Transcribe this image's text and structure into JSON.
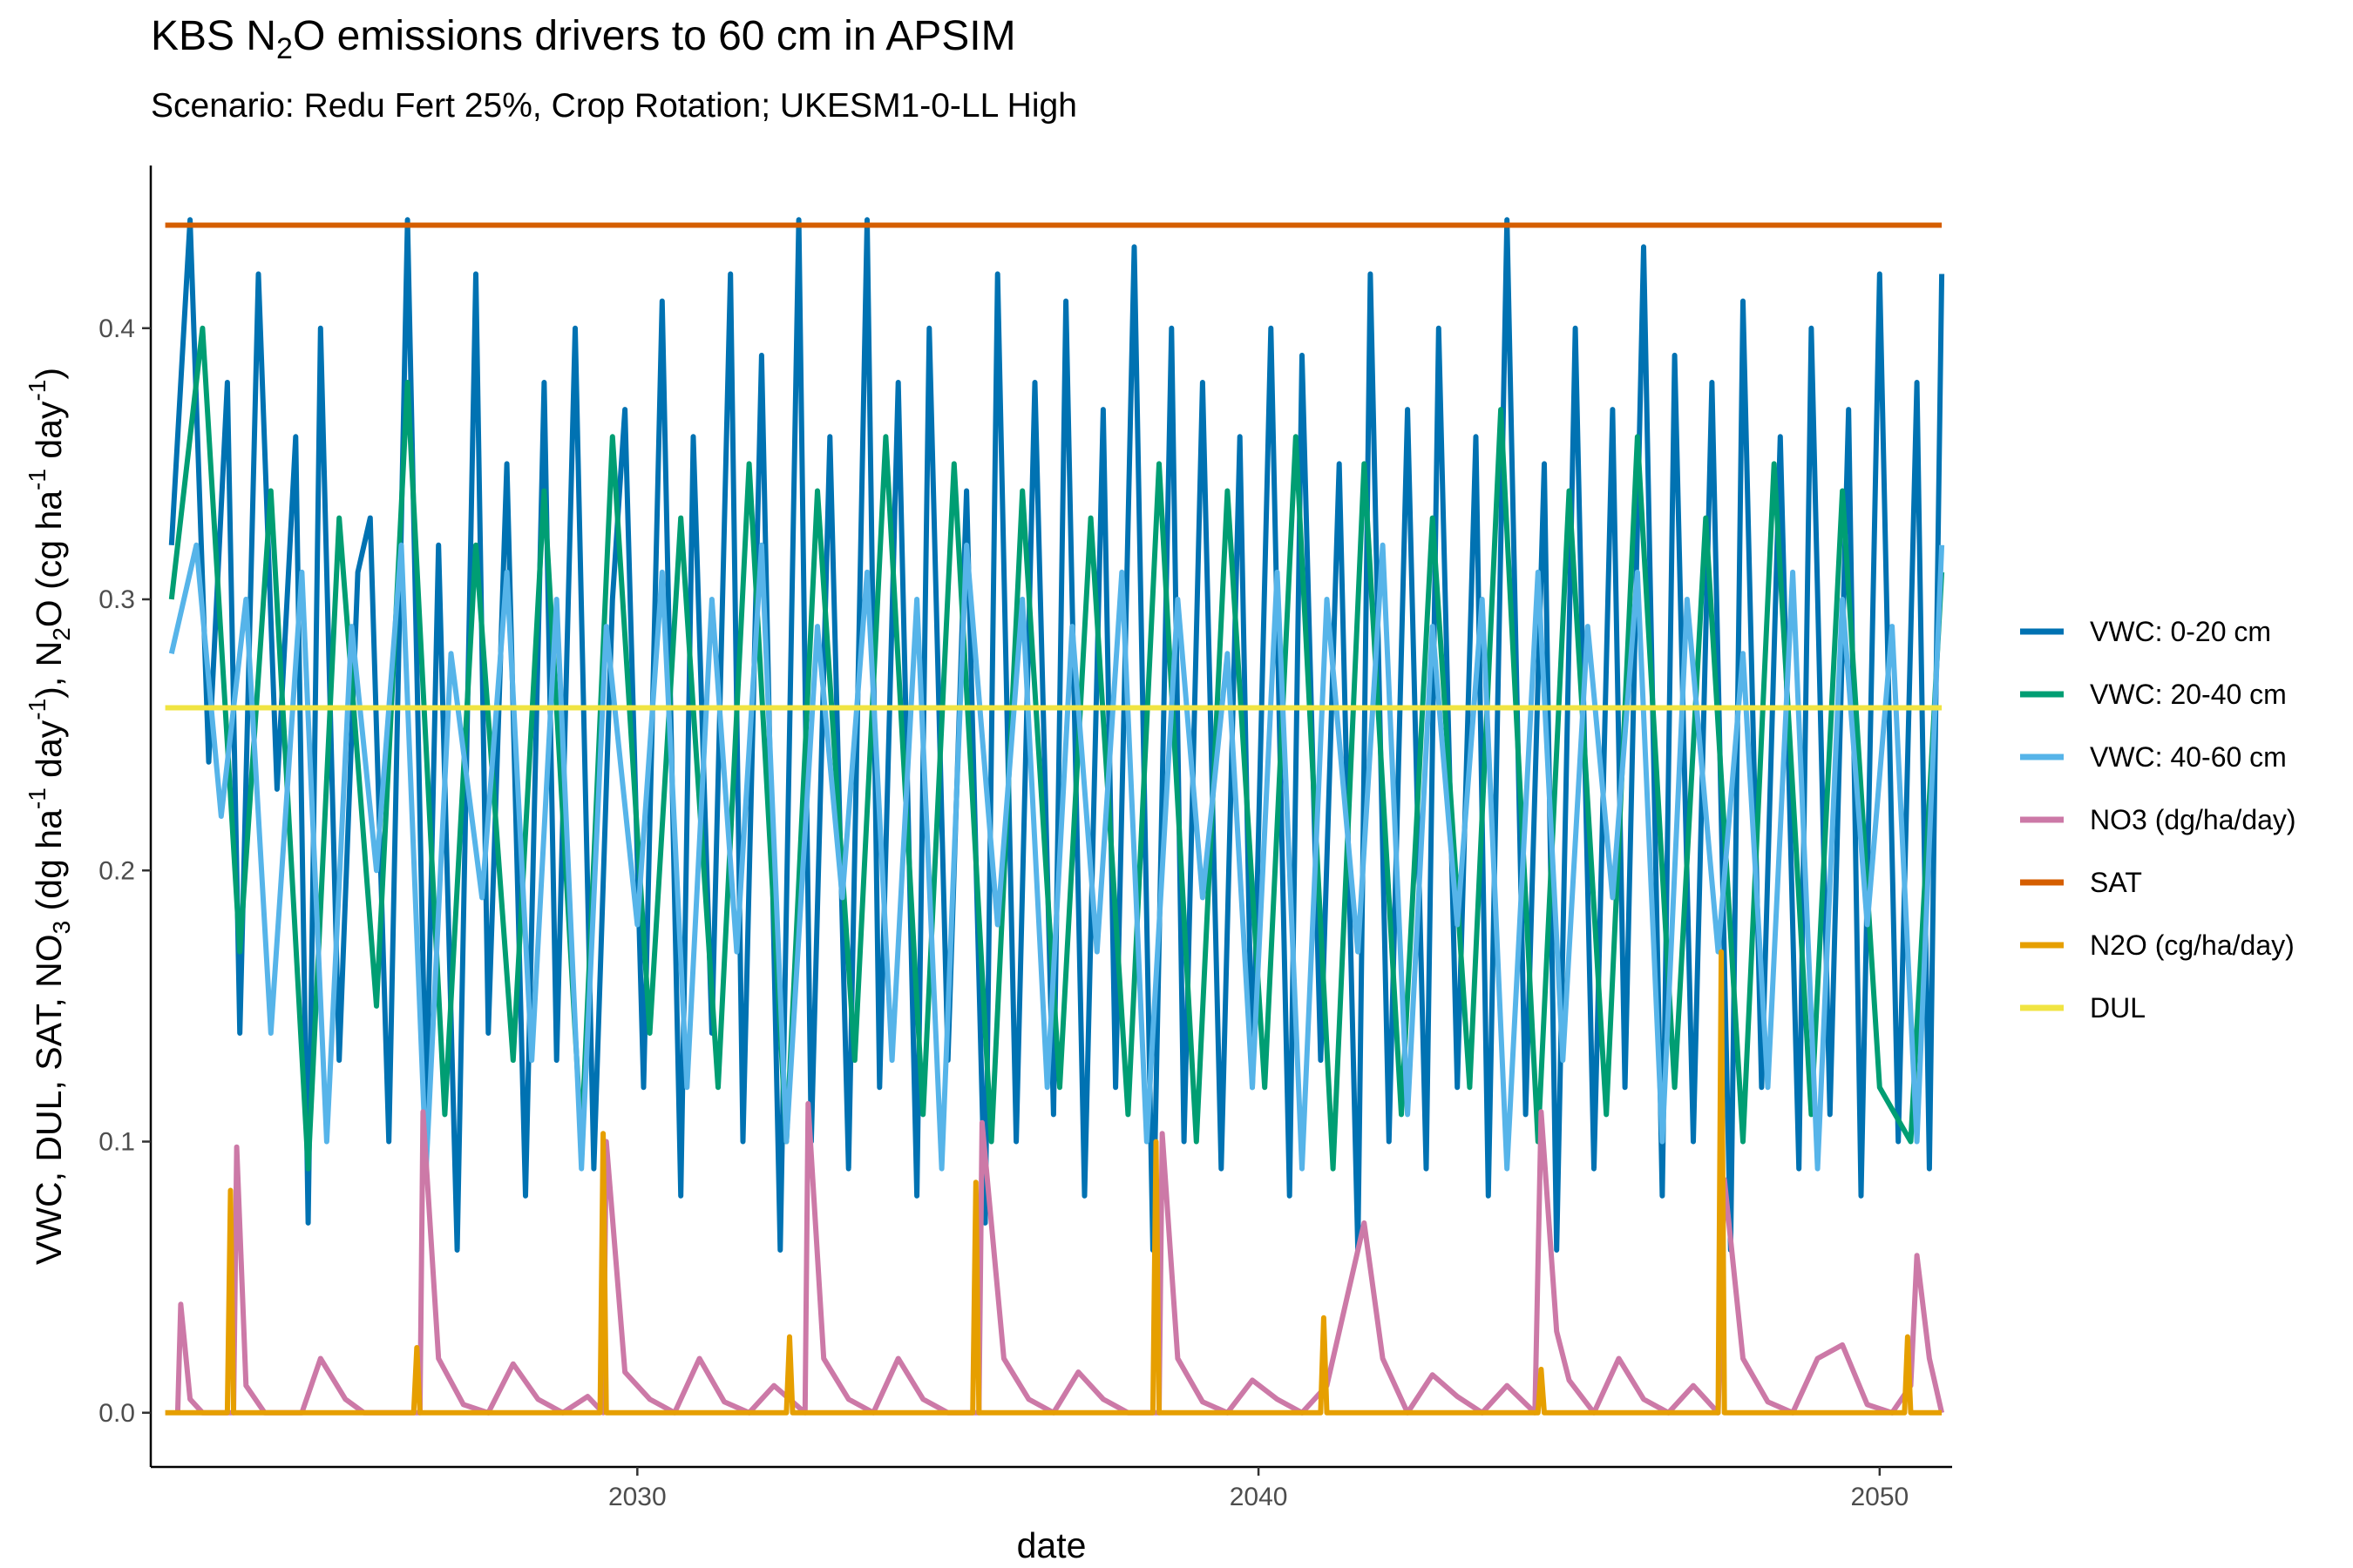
{
  "title": {
    "prefix": "KBS N",
    "sub": "2",
    "suffix": "O emissions drivers to 60 cm in APSIM"
  },
  "subtitle": "Scenario: Redu Fert 25%, Crop Rotation; UKESM1-0-LL High",
  "chart_data": {
    "type": "line",
    "xlabel": "date",
    "ylabel": "VWC, DUL, SAT, NO3 (dg ha-1 day-1), N2O (cg ha-1 day-1)",
    "ylabel_parts": [
      "VWC, DUL, SAT, NO",
      "3",
      " (dg ha",
      "-1",
      " day",
      "-1",
      "), N",
      "2",
      "O  (cg ha",
      "-1",
      " day",
      "-1",
      ")"
    ],
    "xlim": [
      "2022-03-01",
      "2051-03-01"
    ],
    "ylim": [
      -0.02,
      0.46
    ],
    "x_ticks": [
      2030,
      2040,
      2050
    ],
    "y_ticks": [
      0.0,
      0.1,
      0.2,
      0.3,
      0.4
    ],
    "y_tick_labels": [
      "0.0",
      "0.1",
      "0.2",
      "0.3",
      "0.4"
    ],
    "grid": false,
    "legend_position": "right",
    "colors": {
      "VWC: 0-20 cm": "#0072B2",
      "VWC: 20-40 cm": "#009E73",
      "VWC: 40-60 cm": "#56B4E9",
      "NO3 (dg/ha/day)": "#CC79A7",
      "SAT": "#D55E00",
      "N2O (cg/ha/day)": "#E69F00",
      "DUL": "#F0E442"
    },
    "series": [
      {
        "name": "VWC: 0-20 cm",
        "color": "#0072B2",
        "x": [
          2022.5,
          2022.8,
          2023.1,
          2023.4,
          2023.6,
          2023.9,
          2024.2,
          2024.5,
          2024.7,
          2024.9,
          2025.2,
          2025.5,
          2025.7,
          2026.0,
          2026.3,
          2026.6,
          2026.8,
          2027.1,
          2027.4,
          2027.6,
          2027.9,
          2028.2,
          2028.5,
          2028.7,
          2029.0,
          2029.3,
          2029.6,
          2029.8,
          2030.1,
          2030.4,
          2030.7,
          2030.9,
          2031.2,
          2031.5,
          2031.7,
          2032.0,
          2032.3,
          2032.6,
          2032.8,
          2033.1,
          2033.4,
          2033.7,
          2033.9,
          2034.2,
          2034.5,
          2034.7,
          2035.0,
          2035.3,
          2035.6,
          2035.8,
          2036.1,
          2036.4,
          2036.7,
          2036.9,
          2037.2,
          2037.5,
          2037.7,
          2038.0,
          2038.3,
          2038.6,
          2038.8,
          2039.1,
          2039.4,
          2039.7,
          2039.9,
          2040.2,
          2040.5,
          2040.7,
          2041.0,
          2041.3,
          2041.6,
          2041.8,
          2042.1,
          2042.4,
          2042.7,
          2042.9,
          2043.2,
          2043.5,
          2043.7,
          2044.0,
          2044.3,
          2044.6,
          2044.8,
          2045.1,
          2045.4,
          2045.7,
          2045.9,
          2046.2,
          2046.5,
          2046.7,
          2047.0,
          2047.3,
          2047.6,
          2047.8,
          2048.1,
          2048.4,
          2048.7,
          2048.9,
          2049.2,
          2049.5,
          2049.7,
          2050.0,
          2050.3,
          2050.6,
          2050.8,
          2051.0
        ],
        "y": [
          0.32,
          0.44,
          0.24,
          0.38,
          0.14,
          0.42,
          0.23,
          0.36,
          0.07,
          0.4,
          0.13,
          0.31,
          0.33,
          0.1,
          0.44,
          0.11,
          0.32,
          0.06,
          0.42,
          0.14,
          0.35,
          0.08,
          0.38,
          0.13,
          0.4,
          0.09,
          0.3,
          0.37,
          0.12,
          0.41,
          0.08,
          0.36,
          0.14,
          0.42,
          0.1,
          0.39,
          0.06,
          0.44,
          0.1,
          0.36,
          0.09,
          0.44,
          0.12,
          0.38,
          0.08,
          0.4,
          0.13,
          0.34,
          0.07,
          0.42,
          0.1,
          0.38,
          0.11,
          0.41,
          0.08,
          0.37,
          0.12,
          0.43,
          0.06,
          0.4,
          0.1,
          0.38,
          0.09,
          0.36,
          0.12,
          0.4,
          0.08,
          0.39,
          0.13,
          0.35,
          0.06,
          0.42,
          0.1,
          0.37,
          0.09,
          0.4,
          0.12,
          0.36,
          0.08,
          0.44,
          0.11,
          0.35,
          0.06,
          0.4,
          0.09,
          0.37,
          0.12,
          0.43,
          0.08,
          0.39,
          0.1,
          0.38,
          0.06,
          0.41,
          0.12,
          0.36,
          0.09,
          0.4,
          0.11,
          0.37,
          0.08,
          0.42,
          0.1,
          0.38,
          0.09,
          0.42
        ]
      },
      {
        "name": "VWC: 20-40 cm",
        "color": "#009E73",
        "x": [
          2022.5,
          2023.0,
          2023.6,
          2024.1,
          2024.7,
          2025.2,
          2025.8,
          2026.3,
          2026.9,
          2027.4,
          2028.0,
          2028.5,
          2029.1,
          2029.6,
          2030.2,
          2030.7,
          2031.3,
          2031.8,
          2032.4,
          2032.9,
          2033.5,
          2034.0,
          2034.6,
          2035.1,
          2035.7,
          2036.2,
          2036.8,
          2037.3,
          2037.9,
          2038.4,
          2039.0,
          2039.5,
          2040.1,
          2040.6,
          2041.2,
          2041.7,
          2042.3,
          2042.8,
          2043.4,
          2043.9,
          2044.5,
          2045.0,
          2045.6,
          2046.1,
          2046.7,
          2047.2,
          2047.8,
          2048.3,
          2048.9,
          2049.4,
          2050.0,
          2050.5,
          2051.0
        ],
        "y": [
          0.3,
          0.4,
          0.17,
          0.34,
          0.09,
          0.33,
          0.15,
          0.38,
          0.11,
          0.32,
          0.13,
          0.34,
          0.1,
          0.36,
          0.14,
          0.33,
          0.12,
          0.35,
          0.1,
          0.34,
          0.13,
          0.36,
          0.11,
          0.35,
          0.1,
          0.34,
          0.12,
          0.33,
          0.11,
          0.35,
          0.1,
          0.34,
          0.12,
          0.36,
          0.09,
          0.35,
          0.11,
          0.33,
          0.12,
          0.37,
          0.1,
          0.34,
          0.11,
          0.36,
          0.12,
          0.33,
          0.1,
          0.35,
          0.11,
          0.34,
          0.12,
          0.1,
          0.31
        ]
      },
      {
        "name": "VWC: 40-60 cm",
        "color": "#56B4E9",
        "x": [
          2022.5,
          2022.9,
          2023.3,
          2023.7,
          2024.1,
          2024.6,
          2025.0,
          2025.4,
          2025.8,
          2026.2,
          2026.6,
          2027.0,
          2027.5,
          2027.9,
          2028.3,
          2028.7,
          2029.1,
          2029.5,
          2030.0,
          2030.4,
          2030.8,
          2031.2,
          2031.6,
          2032.0,
          2032.4,
          2032.9,
          2033.3,
          2033.7,
          2034.1,
          2034.5,
          2034.9,
          2035.3,
          2035.8,
          2036.2,
          2036.6,
          2037.0,
          2037.4,
          2037.8,
          2038.2,
          2038.7,
          2039.1,
          2039.5,
          2039.9,
          2040.3,
          2040.7,
          2041.1,
          2041.6,
          2042.0,
          2042.4,
          2042.8,
          2043.2,
          2043.6,
          2044.0,
          2044.5,
          2044.9,
          2045.3,
          2045.7,
          2046.1,
          2046.5,
          2046.9,
          2047.4,
          2047.8,
          2048.2,
          2048.6,
          2049.0,
          2049.4,
          2049.8,
          2050.2,
          2050.6,
          2051.0
        ],
        "y": [
          0.28,
          0.32,
          0.22,
          0.3,
          0.14,
          0.31,
          0.1,
          0.29,
          0.2,
          0.32,
          0.09,
          0.28,
          0.19,
          0.31,
          0.13,
          0.3,
          0.09,
          0.29,
          0.18,
          0.31,
          0.12,
          0.3,
          0.17,
          0.32,
          0.1,
          0.29,
          0.19,
          0.31,
          0.13,
          0.3,
          0.09,
          0.32,
          0.18,
          0.3,
          0.12,
          0.29,
          0.17,
          0.31,
          0.1,
          0.3,
          0.19,
          0.28,
          0.12,
          0.31,
          0.09,
          0.3,
          0.17,
          0.32,
          0.11,
          0.29,
          0.18,
          0.3,
          0.09,
          0.31,
          0.13,
          0.29,
          0.19,
          0.31,
          0.1,
          0.3,
          0.17,
          0.28,
          0.12,
          0.31,
          0.09,
          0.3,
          0.18,
          0.29,
          0.1,
          0.32
        ]
      },
      {
        "name": "NO3 (dg/ha/day)",
        "color": "#CC79A7",
        "x": [
          2022.6,
          2022.65,
          2022.8,
          2023.0,
          2023.5,
          2023.55,
          2023.7,
          2024.0,
          2024.6,
          2024.9,
          2025.3,
          2025.6,
          2026.0,
          2026.5,
          2026.55,
          2026.8,
          2027.2,
          2027.6,
          2028.0,
          2028.4,
          2028.8,
          2029.2,
          2029.45,
          2029.5,
          2029.8,
          2030.2,
          2030.6,
          2031.0,
          2031.4,
          2031.8,
          2032.2,
          2032.7,
          2032.75,
          2033.0,
          2033.4,
          2033.8,
          2034.2,
          2034.6,
          2035.0,
          2035.5,
          2035.55,
          2035.9,
          2036.3,
          2036.7,
          2037.1,
          2037.5,
          2037.9,
          2038.4,
          2038.45,
          2038.7,
          2039.1,
          2039.5,
          2039.9,
          2040.3,
          2040.7,
          2041.1,
          2041.4,
          2041.7,
          2042.0,
          2042.4,
          2042.8,
          2043.2,
          2043.6,
          2044.0,
          2044.45,
          2044.55,
          2044.8,
          2045.0,
          2045.4,
          2045.8,
          2046.2,
          2046.6,
          2047.0,
          2047.4,
          2047.5,
          2047.8,
          2048.2,
          2048.6,
          2049.0,
          2049.4,
          2049.8,
          2050.2,
          2050.5,
          2050.6,
          2050.8,
          2051.0
        ],
        "y": [
          0.0,
          0.04,
          0.005,
          0.0,
          0.0,
          0.098,
          0.01,
          0.0,
          0.0,
          0.02,
          0.005,
          0.0,
          0.0,
          0.0,
          0.111,
          0.02,
          0.003,
          0.0,
          0.018,
          0.005,
          0.0,
          0.006,
          0.0,
          0.1,
          0.015,
          0.005,
          0.0,
          0.02,
          0.004,
          0.0,
          0.01,
          0.0,
          0.114,
          0.02,
          0.005,
          0.0,
          0.02,
          0.005,
          0.0,
          0.0,
          0.107,
          0.02,
          0.005,
          0.0,
          0.015,
          0.005,
          0.0,
          0.0,
          0.103,
          0.02,
          0.004,
          0.0,
          0.012,
          0.005,
          0.0,
          0.01,
          0.04,
          0.07,
          0.02,
          0.0,
          0.014,
          0.006,
          0.0,
          0.01,
          0.0,
          0.111,
          0.03,
          0.012,
          0.0,
          0.02,
          0.005,
          0.0,
          0.01,
          0.0,
          0.086,
          0.02,
          0.004,
          0.0,
          0.02,
          0.025,
          0.003,
          0.0,
          0.01,
          0.058,
          0.02,
          0.0
        ]
      },
      {
        "name": "SAT",
        "color": "#D55E00",
        "x": [
          2022.4,
          2051.0
        ],
        "y": [
          0.438,
          0.438
        ]
      },
      {
        "name": "N2O (cg/ha/day)",
        "color": "#E69F00",
        "x": [
          2022.4,
          2023.4,
          2023.45,
          2023.5,
          2024.5,
          2026.4,
          2026.45,
          2026.5,
          2027.5,
          2029.4,
          2029.45,
          2029.5,
          2030.5,
          2032.4,
          2032.45,
          2032.5,
          2033.5,
          2035.4,
          2035.45,
          2035.5,
          2036.5,
          2038.3,
          2038.35,
          2038.4,
          2039.5,
          2041.0,
          2041.05,
          2041.1,
          2042.5,
          2044.5,
          2044.55,
          2044.6,
          2045.5,
          2047.4,
          2047.45,
          2047.5,
          2048.5,
          2050.4,
          2050.45,
          2050.5,
          2051.0
        ],
        "y": [
          0.0,
          0.0,
          0.082,
          0.0,
          0.0,
          0.0,
          0.024,
          0.0,
          0.0,
          0.0,
          0.103,
          0.0,
          0.0,
          0.0,
          0.028,
          0.0,
          0.0,
          0.0,
          0.085,
          0.0,
          0.0,
          0.0,
          0.1,
          0.0,
          0.0,
          0.0,
          0.035,
          0.0,
          0.0,
          0.0,
          0.016,
          0.0,
          0.0,
          0.0,
          0.17,
          0.0,
          0.0,
          0.0,
          0.028,
          0.0,
          0.0
        ]
      },
      {
        "name": "DUL",
        "color": "#F0E442",
        "x": [
          2022.4,
          2051.0
        ],
        "y": [
          0.26,
          0.26
        ]
      }
    ]
  }
}
